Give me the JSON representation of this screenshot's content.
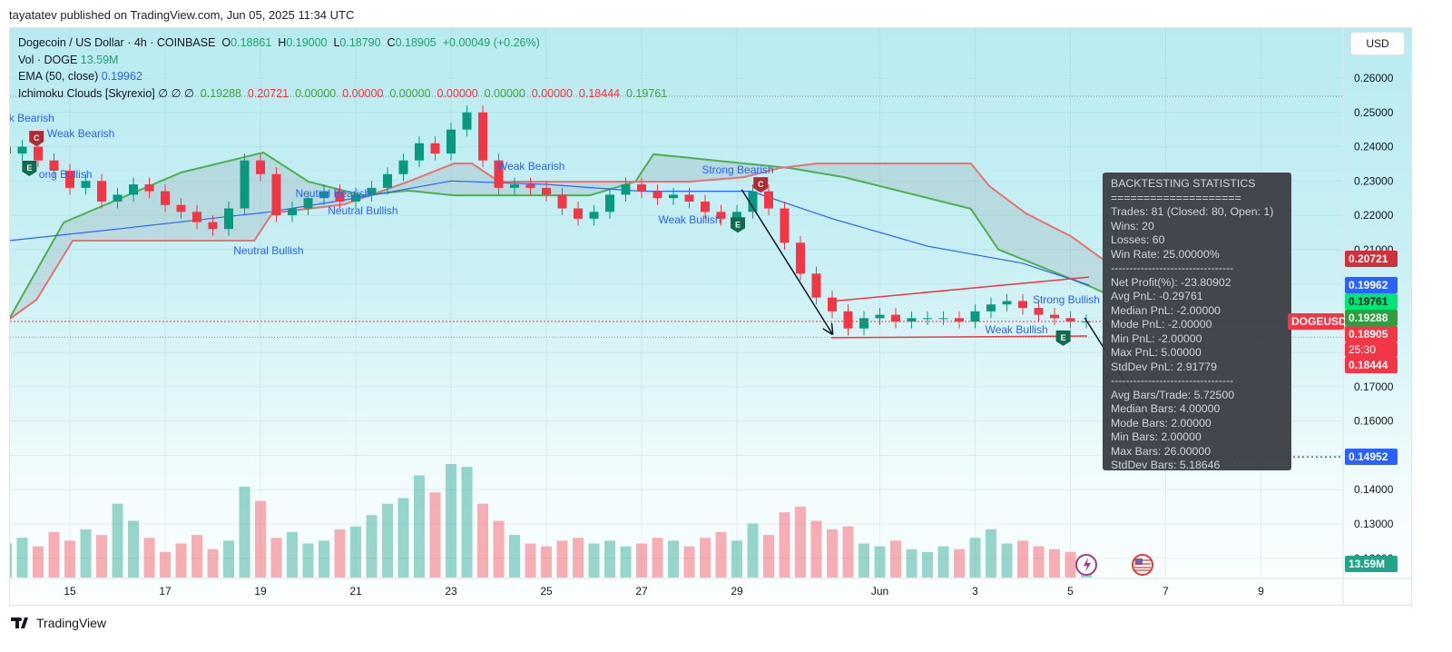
{
  "published": "tayatatev published on TradingView.com, Jun 05, 2025 11:34 UTC",
  "legend": {
    "symbol": "Dogecoin / US Dollar · 4h · COINBASE",
    "o_label": "O",
    "o": "0.18861",
    "h_label": "H",
    "h": "0.19000",
    "l_label": "L",
    "l": "0.18790",
    "c_label": "C",
    "c": "0.18905",
    "change": "+0.00049 (+0.26%)",
    "vol_label": "Vol · DOGE",
    "vol": "13.59M",
    "ema_label": "EMA (50, close)",
    "ema": "0.19962",
    "ichi_label": "Ichimoku Clouds [Skyrexio]  ∅  ∅  ∅",
    "ichi_values": [
      {
        "v": "0.19288",
        "c": "#43a047"
      },
      {
        "v": "0.20721",
        "c": "#f23645"
      },
      {
        "v": "0.00000",
        "c": "#43a047"
      },
      {
        "v": "0.00000",
        "c": "#f23645"
      },
      {
        "v": "0.00000",
        "c": "#43a047"
      },
      {
        "v": "0.00000",
        "c": "#f23645"
      },
      {
        "v": "0.00000",
        "c": "#43a047"
      },
      {
        "v": "0.00000",
        "c": "#f23645"
      },
      {
        "v": "0.18444",
        "c": "#f23645"
      },
      {
        "v": "0.19761",
        "c": "#43a047"
      }
    ]
  },
  "currency_button": "USD",
  "stats": {
    "title": "BACKTESTING STATISTICS",
    "lines": [
      "====================",
      "Trades: 81 (Closed: 80, Open: 1)",
      "Wins: 20",
      "Losses: 60",
      "Win Rate: 25.00000%",
      "---------------------------------",
      "Net Profit(%): -23.80902",
      "Avg PnL: -0.29761",
      "Median PnL: -2.00000",
      "Mode PnL: -2.00000",
      "Min PnL: -2.00000",
      "Max PnL: 5.00000",
      "StdDev PnL: 2.91779",
      "---------------------------------",
      "Avg Bars/Trade: 5.72500",
      "Median Bars: 4.00000",
      "Mode Bars: 2.00000",
      "Min Bars: 2.00000",
      "Max Bars: 26.00000",
      "StdDev Bars: 5.18646"
    ]
  },
  "brand": "TradingView",
  "chart_data": {
    "type": "candlestick",
    "symbol": "DOGEUSD",
    "start": "2025-05-13 16:00",
    "ylim": [
      0.12,
      0.265
    ],
    "y_ticks": [
      "0.26000",
      "0.25000",
      "0.24000",
      "0.23000",
      "0.22000",
      "0.21000",
      "0.20000",
      "0.19000",
      "0.18000",
      "0.17000",
      "0.16000",
      "0.15000",
      "0.14000",
      "0.13000",
      "0.12000"
    ],
    "x_ticks": [
      {
        "day": 15,
        "label": "15"
      },
      {
        "day": 17,
        "label": "17"
      },
      {
        "day": 19,
        "label": "19"
      },
      {
        "day": 21,
        "label": "21"
      },
      {
        "day": 23,
        "label": "23"
      },
      {
        "day": 25,
        "label": "25"
      },
      {
        "day": 27,
        "label": "27"
      },
      {
        "day": 29,
        "label": "29"
      },
      {
        "day": 32,
        "label": "Jun"
      },
      {
        "day": 34,
        "label": "3"
      },
      {
        "day": 36,
        "label": "5"
      },
      {
        "day": 38,
        "label": "7"
      },
      {
        "day": 40,
        "label": "9"
      }
    ],
    "close": [
      0.238,
      0.24,
      0.236,
      0.233,
      0.228,
      0.23,
      0.224,
      0.226,
      0.229,
      0.227,
      0.223,
      0.221,
      0.218,
      0.216,
      0.222,
      0.236,
      0.232,
      0.22,
      0.222,
      0.225,
      0.227,
      0.224,
      0.226,
      0.228,
      0.232,
      0.236,
      0.241,
      0.238,
      0.245,
      0.25,
      0.236,
      0.228,
      0.229,
      0.228,
      0.226,
      0.222,
      0.219,
      0.221,
      0.226,
      0.229,
      0.227,
      0.225,
      0.226,
      0.224,
      0.221,
      0.219,
      0.221,
      0.227,
      0.222,
      0.212,
      0.203,
      0.196,
      0.192,
      0.187,
      0.19,
      0.191,
      0.189,
      0.19,
      0.19,
      0.19,
      0.189,
      0.192,
      0.194,
      0.195,
      0.193,
      0.191,
      0.19,
      0.189,
      0.18905
    ],
    "volume_m": [
      120,
      140,
      110,
      160,
      130,
      170,
      150,
      260,
      200,
      140,
      90,
      120,
      150,
      100,
      130,
      320,
      270,
      140,
      160,
      120,
      130,
      170,
      180,
      220,
      260,
      280,
      360,
      300,
      400,
      390,
      260,
      200,
      150,
      120,
      110,
      130,
      140,
      120,
      130,
      110,
      120,
      140,
      130,
      110,
      140,
      160,
      130,
      190,
      150,
      230,
      250,
      200,
      170,
      180,
      120,
      110,
      130,
      100,
      90,
      110,
      100,
      140,
      170,
      120,
      130,
      110,
      100,
      90,
      14
    ],
    "ema50": [
      [
        13.72,
        0.2126
      ],
      [
        16,
        0.216
      ],
      [
        19.2,
        0.221
      ],
      [
        21,
        0.225
      ],
      [
        23,
        0.23
      ],
      [
        25,
        0.229
      ],
      [
        27,
        0.227
      ],
      [
        29.3,
        0.227
      ],
      [
        31,
        0.219
      ],
      [
        33,
        0.211
      ],
      [
        35,
        0.206
      ],
      [
        36.4,
        0.1996
      ]
    ],
    "cloud_line_a": [
      [
        13.72,
        0.1896
      ],
      [
        14.87,
        0.2179
      ],
      [
        17.34,
        0.2325
      ],
      [
        19.06,
        0.2383
      ],
      [
        20.01,
        0.2298
      ],
      [
        21.15,
        0.2258
      ],
      [
        22.1,
        0.2272
      ],
      [
        23.06,
        0.2258
      ],
      [
        25.91,
        0.2258
      ],
      [
        26.87,
        0.2298
      ],
      [
        27.25,
        0.2378
      ],
      [
        30.1,
        0.2338
      ],
      [
        31.25,
        0.2311
      ],
      [
        33.91,
        0.2219
      ],
      [
        34.49,
        0.21
      ],
      [
        36.39,
        0.1994
      ],
      [
        36.68,
        0.1976
      ]
    ],
    "cloud_line_b": [
      [
        13.72,
        0.1896
      ],
      [
        14.3,
        0.1954
      ],
      [
        15.06,
        0.2126
      ],
      [
        18.87,
        0.2126
      ],
      [
        19.25,
        0.2206
      ],
      [
        20.77,
        0.2232
      ],
      [
        22.1,
        0.2298
      ],
      [
        23.06,
        0.2351
      ],
      [
        23.44,
        0.2351
      ],
      [
        24.01,
        0.2298
      ],
      [
        28.01,
        0.2298
      ],
      [
        29.15,
        0.2311
      ],
      [
        29.91,
        0.2338
      ],
      [
        30.68,
        0.2351
      ],
      [
        33.91,
        0.2351
      ],
      [
        34.3,
        0.2285
      ],
      [
        35.06,
        0.2206
      ],
      [
        36.01,
        0.2139
      ],
      [
        36.68,
        0.2072
      ]
    ],
    "annotations": [
      {
        "text": "k Bearish",
        "day": 13.72,
        "price": 0.2483,
        "anchor": "start"
      },
      {
        "text": "Weak Bearish",
        "day": 13.55,
        "price": 0.2438,
        "anchor": "start"
      },
      {
        "text": "ong Bullish",
        "day": 13.72,
        "price": 0.232,
        "anchor": "start"
      },
      {
        "text": "Weak Bearish",
        "day": 24.68,
        "price": 0.2343,
        "anchor": "middle"
      },
      {
        "text": "Neutral Bearish",
        "day": 20.52,
        "price": 0.2264,
        "anchor": "middle"
      },
      {
        "text": "Neutral Bullish",
        "day": 21.15,
        "price": 0.2213,
        "anchor": "middle"
      },
      {
        "text": "Neutral Bullish",
        "day": 19.17,
        "price": 0.2097,
        "anchor": "middle"
      },
      {
        "text": "Weak Bullish",
        "day": 28.01,
        "price": 0.2187,
        "anchor": "middle"
      },
      {
        "text": "Strong Bearish",
        "day": 29.02,
        "price": 0.2333,
        "anchor": "middle"
      },
      {
        "text": "Strong Bullish",
        "day": 36.1,
        "price": 0.1954,
        "anchor": "middle"
      },
      {
        "text": "Weak Bullish",
        "day": 34.87,
        "price": 0.1867,
        "anchor": "middle"
      }
    ],
    "markers": [
      {
        "text": "C",
        "day": 14.3,
        "price": 0.2425,
        "color": "#b22833"
      },
      {
        "text": "E",
        "day": 14.15,
        "price": 0.2338,
        "color": "#106b4f"
      },
      {
        "text": "C",
        "day": 29.5,
        "price": 0.229,
        "color": "#b22833"
      },
      {
        "text": "E",
        "day": 29.02,
        "price": 0.2173,
        "color": "#106b4f"
      },
      {
        "text": "E",
        "day": 35.85,
        "price": 0.1843,
        "color": "#106b4f"
      }
    ],
    "lines": [
      {
        "from": [
          29.1,
          0.2275
        ],
        "to": [
          31.0,
          0.1855
        ],
        "color": "#131722",
        "arrow": true
      },
      {
        "from": [
          30.98,
          0.1949
        ],
        "to": [
          36.39,
          0.202
        ],
        "color": "#f23645",
        "arrow": false
      },
      {
        "from": [
          30.98,
          0.1843
        ],
        "to": [
          36.35,
          0.1848
        ],
        "color": "#f23645",
        "arrow": false
      },
      {
        "from": [
          36.3,
          0.1901
        ],
        "to": [
          38.2,
          0.1485
        ],
        "color": "#131722",
        "arrow": true
      }
    ],
    "target_price": 0.14952,
    "price_tags": [
      {
        "label": "0.20721",
        "price": 0.20721,
        "color": "#d32f3a",
        "text": "#fff"
      },
      {
        "label": "0.19962",
        "price": 0.19962,
        "color": "#2962ff",
        "text": "#fff"
      },
      {
        "label": "0.19761",
        "price": 0.19761,
        "color": "#00e676",
        "text": "#131722"
      },
      {
        "label": "0.19288",
        "price": 0.19288,
        "color": "#2e9e3e",
        "text": "#fff"
      },
      {
        "label": "0.18905",
        "price": 0.18905,
        "color": "#f23645",
        "text": "#fff"
      },
      {
        "label": "0.18444",
        "price": 0.18444,
        "color": "#f23645",
        "text": "#fff"
      },
      {
        "label": "0.14952",
        "price": 0.14952,
        "color": "#2962ff",
        "text": "#fff"
      }
    ],
    "countdown": "25:30",
    "volume_tag": "13.59M",
    "colors": {
      "up": "#089981",
      "down": "#f23645",
      "ema": "#2962ff",
      "cloud_a": "#4caf50",
      "cloud_b": "#e57373"
    }
  }
}
